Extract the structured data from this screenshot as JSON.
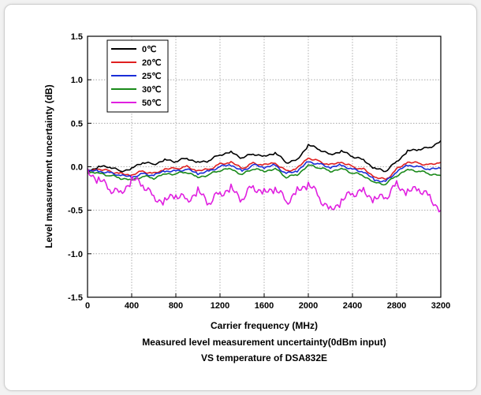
{
  "chart_data": {
    "type": "line",
    "xlabel": "Carrier frequency (MHz)",
    "ylabel": "Level maasurement uncertainty (dB)",
    "caption": [
      "Measured level measurement uncertainty(0dBm input)",
      "VS temperature of DSA832E"
    ],
    "xlim": [
      0,
      3200
    ],
    "ylim": [
      -1.5,
      1.5
    ],
    "xticks": [
      "0",
      "400",
      "800",
      "1200",
      "1600",
      "2000",
      "2400",
      "2800",
      "3200"
    ],
    "yticks": [
      "-1.5",
      "-1.0",
      "-0.5",
      "0.0",
      "0.5",
      "1.0",
      "1.5"
    ],
    "grid": true,
    "legend_position": "top-left",
    "x": [
      0,
      100,
      200,
      300,
      400,
      500,
      600,
      700,
      800,
      900,
      1000,
      1100,
      1200,
      1300,
      1400,
      1500,
      1600,
      1700,
      1800,
      1900,
      2000,
      2100,
      2200,
      2300,
      2400,
      2500,
      2600,
      2700,
      2800,
      2900,
      3000,
      3100,
      3200
    ],
    "series": [
      {
        "name": "0℃",
        "color": "#000000",
        "values": [
          -0.05,
          0.0,
          0.0,
          -0.05,
          -0.02,
          0.05,
          0.03,
          0.08,
          0.06,
          0.1,
          0.05,
          0.07,
          0.14,
          0.17,
          0.1,
          0.15,
          0.12,
          0.16,
          0.05,
          0.08,
          0.25,
          0.2,
          0.14,
          0.18,
          0.12,
          0.08,
          -0.02,
          -0.05,
          0.06,
          0.18,
          0.2,
          0.22,
          0.3
        ]
      },
      {
        "name": "20℃",
        "color": "#e02020",
        "values": [
          -0.05,
          -0.03,
          -0.05,
          -0.08,
          -0.1,
          -0.05,
          -0.08,
          -0.03,
          -0.02,
          0.0,
          -0.05,
          -0.03,
          0.03,
          0.05,
          -0.02,
          0.04,
          0.02,
          0.04,
          -0.05,
          -0.02,
          0.1,
          0.06,
          0.02,
          0.05,
          0.0,
          -0.03,
          -0.12,
          -0.15,
          -0.03,
          0.05,
          0.04,
          0.02,
          0.05
        ]
      },
      {
        "name": "25℃",
        "color": "#1a2ed8",
        "values": [
          -0.05,
          -0.05,
          -0.07,
          -0.1,
          -0.12,
          -0.08,
          -0.1,
          -0.05,
          -0.05,
          -0.03,
          -0.08,
          -0.05,
          0.0,
          0.02,
          -0.05,
          0.02,
          -0.01,
          0.02,
          -0.08,
          -0.05,
          0.06,
          0.03,
          -0.01,
          0.02,
          -0.03,
          -0.06,
          -0.15,
          -0.17,
          -0.06,
          0.02,
          0.0,
          -0.03,
          -0.02
        ]
      },
      {
        "name": "30℃",
        "color": "#1a8a1a",
        "values": [
          -0.06,
          -0.07,
          -0.1,
          -0.13,
          -0.15,
          -0.11,
          -0.13,
          -0.08,
          -0.08,
          -0.06,
          -0.12,
          -0.09,
          -0.04,
          -0.02,
          -0.09,
          -0.02,
          -0.05,
          -0.02,
          -0.12,
          -0.09,
          0.02,
          -0.01,
          -0.05,
          -0.02,
          -0.07,
          -0.1,
          -0.18,
          -0.2,
          -0.1,
          -0.03,
          -0.05,
          -0.08,
          -0.1
        ]
      },
      {
        "name": "50℃",
        "color": "#e020e0",
        "values": [
          -0.05,
          -0.15,
          -0.25,
          -0.3,
          -0.15,
          -0.2,
          -0.35,
          -0.4,
          -0.32,
          -0.38,
          -0.28,
          -0.42,
          -0.3,
          -0.25,
          -0.38,
          -0.22,
          -0.3,
          -0.25,
          -0.4,
          -0.28,
          -0.2,
          -0.35,
          -0.5,
          -0.4,
          -0.3,
          -0.28,
          -0.38,
          -0.35,
          -0.2,
          -0.3,
          -0.25,
          -0.35,
          -0.5
        ]
      }
    ]
  }
}
